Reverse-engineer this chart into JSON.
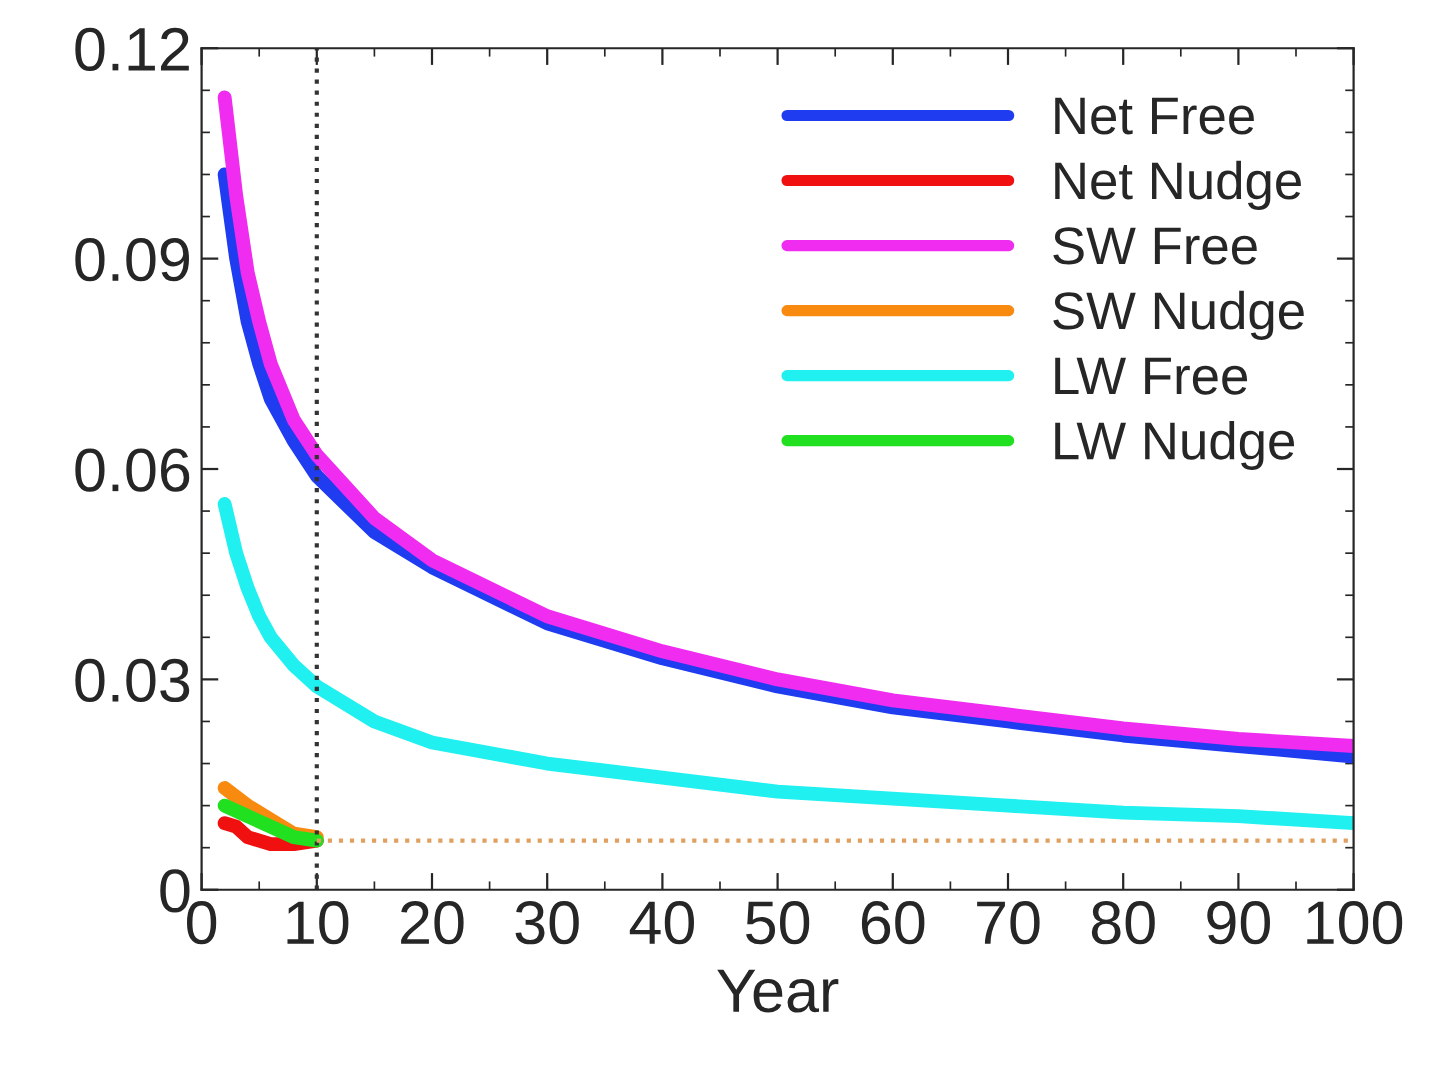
{
  "chart_data": {
    "type": "line",
    "xlabel": "Year",
    "xlim": [
      0,
      100
    ],
    "xticks": [
      0,
      10,
      20,
      30,
      40,
      50,
      60,
      70,
      80,
      90,
      100
    ],
    "ylim": [
      0,
      0.12
    ],
    "yticks": [
      0,
      0.03,
      0.06,
      0.09,
      0.12
    ],
    "grid": false,
    "legend": "top right",
    "marker": "none",
    "line_style": "solid",
    "series": [
      {
        "name": "Net Free",
        "color": "#1f3cf0",
        "x": [
          2,
          3,
          4,
          5,
          6,
          8,
          10,
          15,
          20,
          30,
          40,
          50,
          60,
          70,
          80,
          90,
          100
        ],
        "values": [
          0.102,
          0.09,
          0.081,
          0.075,
          0.07,
          0.064,
          0.059,
          0.051,
          0.046,
          0.038,
          0.033,
          0.029,
          0.026,
          0.024,
          0.022,
          0.0205,
          0.019
        ]
      },
      {
        "name": "Net Nudge",
        "color": "#f01010",
        "x": [
          2,
          3,
          4,
          6,
          8,
          10
        ],
        "values": [
          0.0095,
          0.009,
          0.0075,
          0.0065,
          0.0065,
          0.007
        ]
      },
      {
        "name": "SW Free",
        "color": "#f02cf0",
        "x": [
          2,
          3,
          4,
          5,
          6,
          8,
          10,
          15,
          20,
          30,
          40,
          50,
          60,
          70,
          80,
          90,
          100
        ],
        "values": [
          0.113,
          0.099,
          0.088,
          0.081,
          0.075,
          0.067,
          0.062,
          0.053,
          0.047,
          0.039,
          0.034,
          0.03,
          0.027,
          0.025,
          0.023,
          0.0215,
          0.0205
        ]
      },
      {
        "name": "SW Nudge",
        "color": "#f88a10",
        "x": [
          2,
          4,
          6,
          8,
          10
        ],
        "values": [
          0.0145,
          0.012,
          0.01,
          0.008,
          0.0075
        ]
      },
      {
        "name": "LW Free",
        "color": "#20f0f0",
        "x": [
          2,
          3,
          4,
          5,
          6,
          8,
          10,
          15,
          20,
          30,
          40,
          50,
          60,
          70,
          80,
          90,
          100
        ],
        "values": [
          0.055,
          0.048,
          0.043,
          0.039,
          0.036,
          0.032,
          0.029,
          0.024,
          0.021,
          0.018,
          0.016,
          0.014,
          0.013,
          0.012,
          0.011,
          0.0105,
          0.0095
        ]
      },
      {
        "name": "LW Nudge",
        "color": "#20e020",
        "x": [
          2,
          4,
          6,
          8,
          10
        ],
        "values": [
          0.012,
          0.0105,
          0.009,
          0.0075,
          0.007
        ]
      }
    ],
    "ref_lines": [
      {
        "axis": "x",
        "value": 10,
        "color": "#333333",
        "line_style": "dotted"
      },
      {
        "axis": "y",
        "value": 0.007,
        "color": "#e0a060",
        "line_style": "dotted"
      }
    ]
  }
}
